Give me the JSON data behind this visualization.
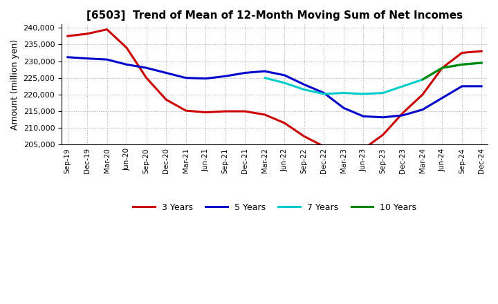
{
  "title": "[6503]  Trend of Mean of 12-Month Moving Sum of Net Incomes",
  "ylabel": "Amount (million yen)",
  "background_color": "#ffffff",
  "grid_color": "#aaaaaa",
  "ylim": [
    205000,
    241000
  ],
  "yticks": [
    205000,
    210000,
    215000,
    220000,
    225000,
    230000,
    235000,
    240000
  ],
  "x_labels": [
    "Sep-19",
    "Dec-19",
    "Mar-20",
    "Jun-20",
    "Sep-20",
    "Dec-20",
    "Mar-21",
    "Jun-21",
    "Sep-21",
    "Dec-21",
    "Mar-22",
    "Jun-22",
    "Sep-22",
    "Dec-22",
    "Mar-23",
    "Jun-23",
    "Sep-23",
    "Dec-23",
    "Mar-24",
    "Jun-24",
    "Sep-24",
    "Dec-24"
  ],
  "series": {
    "3 Years": {
      "color": "#cc0000",
      "data_x": [
        0,
        1,
        2,
        3,
        4,
        5,
        6,
        7,
        8,
        9,
        10,
        11,
        12,
        13,
        14,
        15,
        16,
        17,
        18,
        19,
        20,
        21
      ],
      "data_y": [
        237500,
        238200,
        239500,
        234000,
        225000,
        218500,
        215200,
        214700,
        215000,
        215000,
        214000,
        211500,
        207500,
        204500,
        203200,
        203700,
        208000,
        214500,
        220000,
        228000,
        232500,
        233000
      ]
    },
    "5 Years": {
      "color": "#0000cc",
      "data_x": [
        0,
        1,
        2,
        3,
        4,
        5,
        6,
        7,
        8,
        9,
        10,
        11,
        12,
        13,
        14,
        15,
        16,
        17,
        18,
        19,
        20,
        21
      ],
      "data_y": [
        231200,
        230800,
        230500,
        229000,
        228000,
        226500,
        225000,
        224800,
        225500,
        226500,
        227000,
        225800,
        223000,
        220500,
        216000,
        213500,
        213200,
        213800,
        215500,
        219000,
        222500,
        222500
      ]
    },
    "7 Years": {
      "color": "#00cccc",
      "data_x": [
        10,
        11,
        12,
        13,
        14,
        15,
        16,
        17,
        18,
        19,
        20,
        21
      ],
      "data_y": [
        225000,
        223500,
        221500,
        220200,
        220500,
        220200,
        220500,
        222500,
        224500,
        228000,
        229000,
        229500
      ]
    },
    "10 Years": {
      "color": "#008800",
      "data_x": [
        18,
        19,
        20,
        21
      ],
      "data_y": [
        224500,
        228000,
        229000,
        229500
      ]
    }
  },
  "legend_labels": [
    "3 Years",
    "5 Years",
    "7 Years",
    "10 Years"
  ],
  "legend_colors": [
    "#cc0000",
    "#0000cc",
    "#00cccc",
    "#008800"
  ],
  "title_fontsize": 11,
  "figwidth": 7.2,
  "figheight": 4.4,
  "dpi": 100
}
